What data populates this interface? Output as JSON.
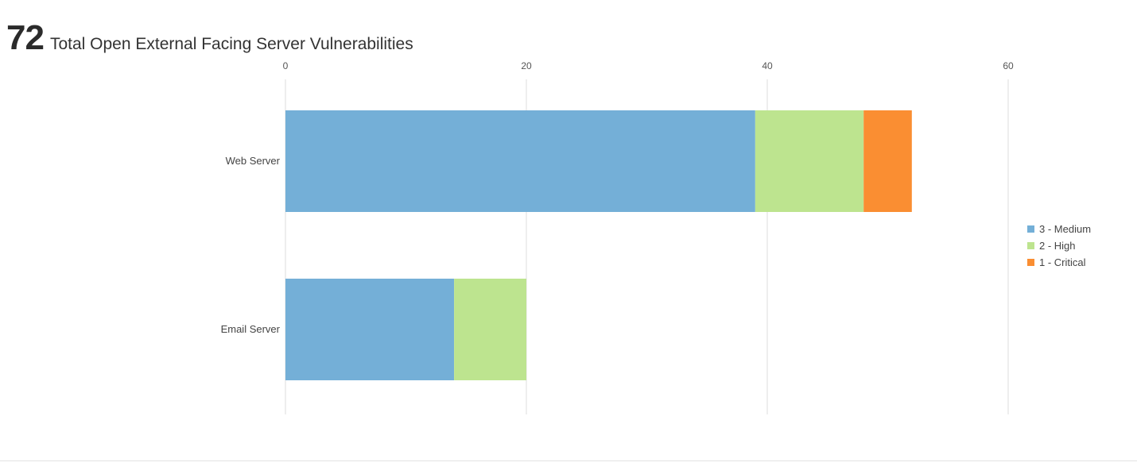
{
  "widget": {
    "total_count": "72",
    "title": "Total Open External Facing Server Vulnerabilities"
  },
  "chart_data": {
    "type": "bar",
    "orientation": "horizontal",
    "stacked": true,
    "categories": [
      "Web Server",
      "Email Server"
    ],
    "series": [
      {
        "name": "3 - Medium",
        "color": "#74afd7",
        "values": [
          39,
          14
        ]
      },
      {
        "name": "2 - High",
        "color": "#bde48f",
        "values": [
          9,
          6
        ]
      },
      {
        "name": "1 - Critical",
        "color": "#fa8e32",
        "values": [
          4,
          0
        ]
      }
    ],
    "xlim": [
      0,
      60
    ],
    "x_ticks": [
      0,
      20,
      40,
      60
    ],
    "x_ticks_labels": [
      "0",
      "20",
      "40",
      "60"
    ],
    "x_axis_position": "top",
    "grid": true,
    "legend_position": "right"
  }
}
